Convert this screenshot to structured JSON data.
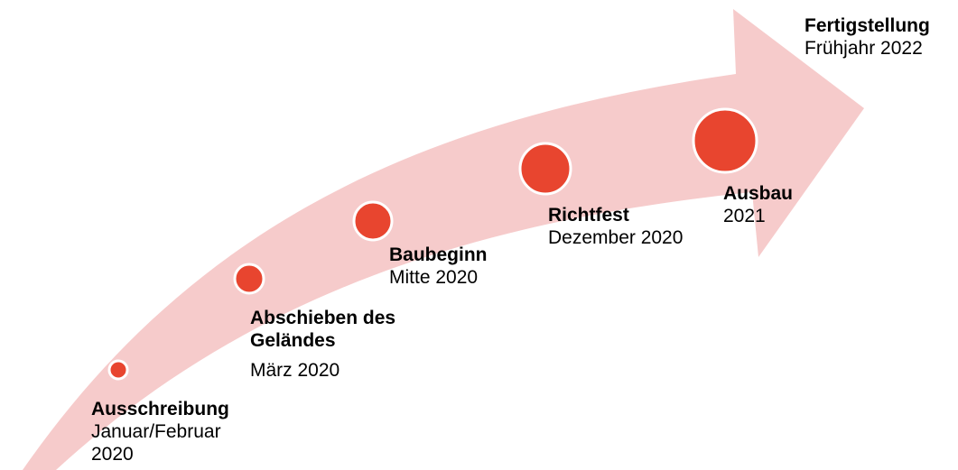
{
  "colors": {
    "arrow_fill": "#f6cbcb",
    "dot_fill": "#e8452f",
    "dot_stroke": "#ffffff",
    "text": "#000000"
  },
  "milestones": [
    {
      "title": "Ausschreibung",
      "date_line1": "Januar/Februar",
      "date_line2": "2020"
    },
    {
      "title_line1": "Abschieben des",
      "title_line2": "Geländes",
      "date": "März 2020"
    },
    {
      "title": "Baubeginn",
      "date": "Mitte 2020"
    },
    {
      "title": "Richtfest",
      "date": "Dezember 2020"
    },
    {
      "title": "Ausbau",
      "date": "2021"
    },
    {
      "title": "Fertigstellung",
      "date": "Frühjahr 2022"
    }
  ]
}
